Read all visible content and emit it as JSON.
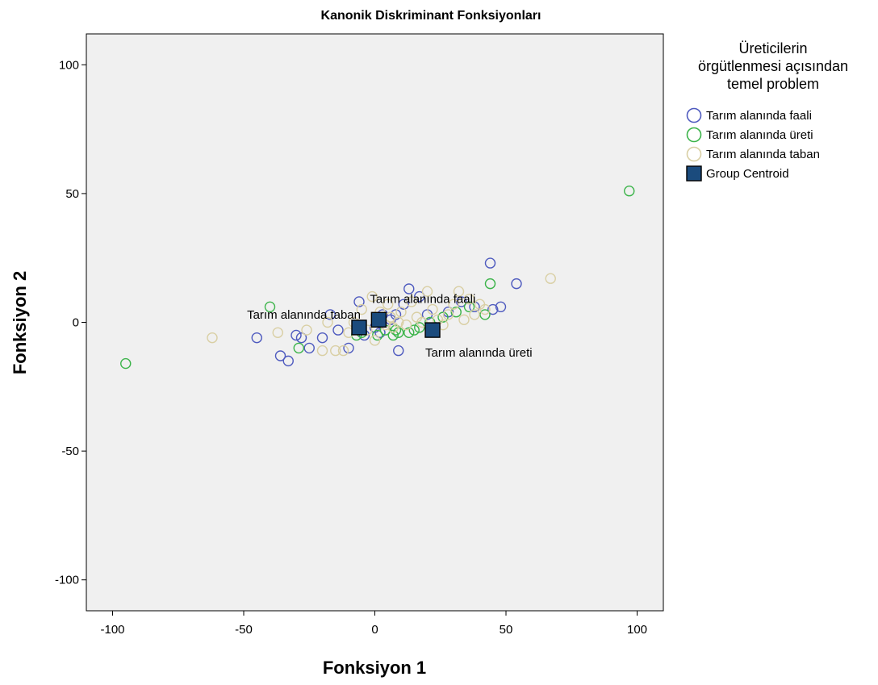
{
  "chart_data": {
    "type": "scatter",
    "title": "Kanonik Diskriminant Fonksiyonları",
    "xlabel": "Fonksiyon 1",
    "ylabel": "Fonksiyon 2",
    "xlim": [
      -110,
      110
    ],
    "ylim": [
      -112,
      112
    ],
    "xticks": [
      -100,
      -50,
      0,
      50,
      100
    ],
    "yticks": [
      100,
      50,
      0,
      -50,
      -100
    ],
    "xtick_labels": [
      "-100",
      "-50",
      "0",
      "50",
      "100"
    ],
    "ytick_labels": [
      "100",
      "50",
      "0",
      "-50",
      "-100"
    ],
    "grid": false,
    "legend": {
      "placement": "right",
      "title_lines": [
        "Üreticilerin",
        "örgütlenmesi açısından",
        "temel problem"
      ],
      "entries": [
        {
          "label": "Tarım alanında faali",
          "marker": "circle",
          "color": "#4f5bbf"
        },
        {
          "label": "Tarım alanında üreti",
          "marker": "circle",
          "color": "#3cb44a"
        },
        {
          "label": "Tarım alanında taban",
          "marker": "circle",
          "color": "#d9cfa4"
        },
        {
          "label": "Group Centroid",
          "marker": "square",
          "color": "#1b4b7d"
        }
      ]
    },
    "series": [
      {
        "name": "Tarım alanında faali",
        "color": "#4f5bbf",
        "points": [
          [
            -45,
            -6
          ],
          [
            -36,
            -13
          ],
          [
            -33,
            -15
          ],
          [
            -30,
            -5
          ],
          [
            -28,
            -6
          ],
          [
            -25,
            -10
          ],
          [
            -20,
            -6
          ],
          [
            -17,
            3
          ],
          [
            -14,
            -3
          ],
          [
            -10,
            -10
          ],
          [
            -6,
            8
          ],
          [
            -4,
            -5
          ],
          [
            0,
            -2
          ],
          [
            3,
            3
          ],
          [
            8,
            3
          ],
          [
            9,
            -11
          ],
          [
            11,
            7
          ],
          [
            13,
            13
          ],
          [
            17,
            10
          ],
          [
            20,
            3
          ],
          [
            23,
            -2
          ],
          [
            28,
            4
          ],
          [
            33,
            8
          ],
          [
            38,
            6
          ],
          [
            44,
            23
          ],
          [
            45,
            5
          ],
          [
            48,
            6
          ],
          [
            54,
            15
          ],
          [
            2,
            -4
          ],
          [
            6,
            1
          ]
        ]
      },
      {
        "name": "Tarım alanında üreti",
        "color": "#3cb44a",
        "points": [
          [
            -95,
            -16
          ],
          [
            -40,
            6
          ],
          [
            -29,
            -10
          ],
          [
            -7,
            -5
          ],
          [
            -5,
            -4
          ],
          [
            1,
            -5
          ],
          [
            4,
            -3
          ],
          [
            7,
            -5
          ],
          [
            8,
            -3
          ],
          [
            9,
            -4
          ],
          [
            13,
            -4
          ],
          [
            15,
            -3
          ],
          [
            17,
            -2
          ],
          [
            21,
            0
          ],
          [
            26,
            2
          ],
          [
            31,
            4
          ],
          [
            36,
            6
          ],
          [
            42,
            3
          ],
          [
            44,
            15
          ],
          [
            97,
            51
          ]
        ]
      },
      {
        "name": "Tarım alanında taban",
        "color": "#d9cfa4",
        "points": [
          [
            -62,
            -6
          ],
          [
            -37,
            -4
          ],
          [
            -26,
            -3
          ],
          [
            -20,
            -11
          ],
          [
            -18,
            0
          ],
          [
            -15,
            -11
          ],
          [
            -12,
            -11
          ],
          [
            -10,
            -4
          ],
          [
            -8,
            0
          ],
          [
            -5,
            5
          ],
          [
            -3,
            -3
          ],
          [
            -1,
            10
          ],
          [
            0,
            -7
          ],
          [
            2,
            4
          ],
          [
            4,
            -1
          ],
          [
            5,
            7
          ],
          [
            6,
            2
          ],
          [
            7,
            -2
          ],
          [
            9,
            0
          ],
          [
            10,
            4
          ],
          [
            12,
            -1
          ],
          [
            14,
            8
          ],
          [
            16,
            2
          ],
          [
            18,
            0
          ],
          [
            20,
            12
          ],
          [
            22,
            5
          ],
          [
            24,
            1
          ],
          [
            26,
            -1
          ],
          [
            28,
            3
          ],
          [
            30,
            7
          ],
          [
            32,
            12
          ],
          [
            34,
            1
          ],
          [
            36,
            9
          ],
          [
            38,
            3
          ],
          [
            40,
            7
          ],
          [
            42,
            5
          ],
          [
            67,
            17
          ]
        ]
      }
    ],
    "centroids": [
      {
        "label": "Tarım alanında taban",
        "x": -6,
        "y": -2,
        "label_position": "upper-left"
      },
      {
        "label": "Tarım alanında faali",
        "x": 1.5,
        "y": 1,
        "label_position": "upper-right"
      },
      {
        "label": "Tarım alanında üreti",
        "x": 22,
        "y": -3,
        "label_position": "lower-right"
      }
    ],
    "centroid_color": "#1b4b7d"
  }
}
